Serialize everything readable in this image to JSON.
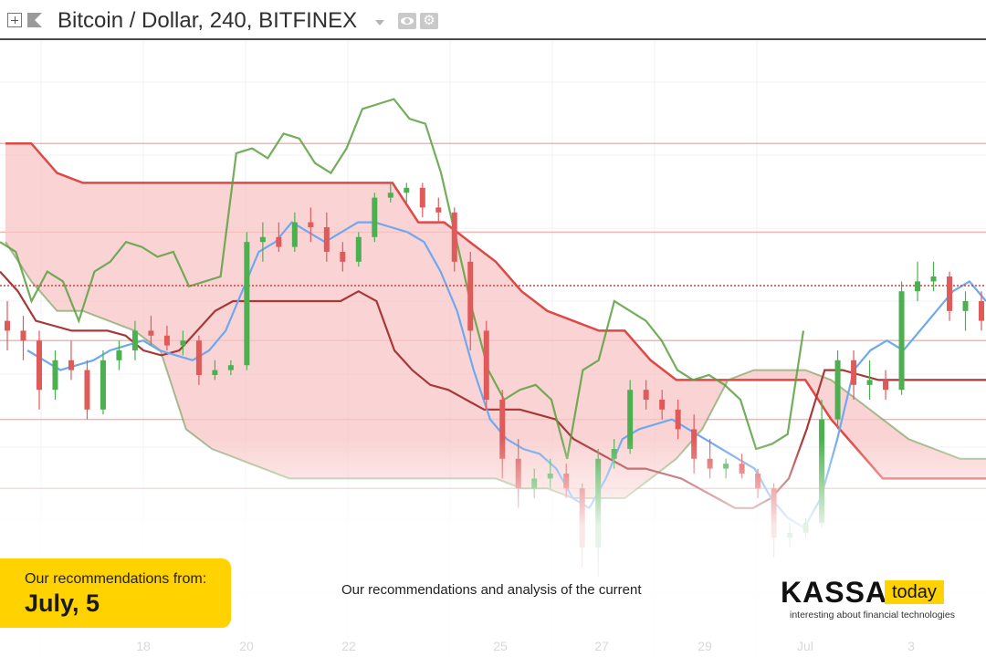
{
  "header": {
    "symbol_title": "Bitcoin / Dollar, 240, BITFINEX",
    "icons": [
      "plus-icon",
      "flag-icon",
      "caret-down-icon",
      "eye-icon",
      "gear-icon"
    ]
  },
  "banner": {
    "recommendation_label": "Our recommendations from:",
    "recommendation_date": "July, 5",
    "analysis_text": "Our recommendations and analysis of the current",
    "logo_main": "KASSA",
    "logo_highlight": "today",
    "logo_tagline": "interesting about financial technologies",
    "accent_color": "#ffd200"
  },
  "chart_data": {
    "type": "candlestick",
    "x_tick_labels": [
      "18",
      "20",
      "22",
      "25",
      "27",
      "29",
      "Jul",
      "3"
    ],
    "indicator": "ichimoku",
    "colors": {
      "up": "#4caf50",
      "down": "#e05a5a",
      "cloud": "#f8c6c6",
      "conversion": "#6fa8f0",
      "base": "#a83838",
      "lagging": "#5aa040"
    },
    "y_range": [
      0,
      100
    ],
    "candles": [
      {
        "o": 46,
        "h": 50,
        "l": 40,
        "c": 44
      },
      {
        "o": 44,
        "h": 47,
        "l": 38,
        "c": 42
      },
      {
        "o": 42,
        "h": 44,
        "l": 28,
        "c": 32
      },
      {
        "o": 32,
        "h": 40,
        "l": 30,
        "c": 38
      },
      {
        "o": 38,
        "h": 42,
        "l": 34,
        "c": 36
      },
      {
        "o": 36,
        "h": 38,
        "l": 26,
        "c": 28
      },
      {
        "o": 28,
        "h": 40,
        "l": 27,
        "c": 38
      },
      {
        "o": 38,
        "h": 42,
        "l": 36,
        "c": 40
      },
      {
        "o": 40,
        "h": 46,
        "l": 38,
        "c": 44
      },
      {
        "o": 44,
        "h": 47,
        "l": 41,
        "c": 43
      },
      {
        "o": 43,
        "h": 45,
        "l": 40,
        "c": 41
      },
      {
        "o": 41,
        "h": 44,
        "l": 39,
        "c": 42
      },
      {
        "o": 42,
        "h": 43,
        "l": 33,
        "c": 35
      },
      {
        "o": 35,
        "h": 38,
        "l": 34,
        "c": 36
      },
      {
        "o": 36,
        "h": 38,
        "l": 35,
        "c": 37
      },
      {
        "o": 37,
        "h": 64,
        "l": 36,
        "c": 62
      },
      {
        "o": 62,
        "h": 66,
        "l": 58,
        "c": 63
      },
      {
        "o": 63,
        "h": 66,
        "l": 60,
        "c": 61
      },
      {
        "o": 61,
        "h": 68,
        "l": 60,
        "c": 66
      },
      {
        "o": 66,
        "h": 69,
        "l": 62,
        "c": 65
      },
      {
        "o": 65,
        "h": 68,
        "l": 58,
        "c": 60
      },
      {
        "o": 60,
        "h": 62,
        "l": 56,
        "c": 58
      },
      {
        "o": 58,
        "h": 64,
        "l": 57,
        "c": 63
      },
      {
        "o": 63,
        "h": 72,
        "l": 62,
        "c": 71
      },
      {
        "o": 71,
        "h": 74,
        "l": 70,
        "c": 72
      },
      {
        "o": 72,
        "h": 74,
        "l": 70,
        "c": 73
      },
      {
        "o": 73,
        "h": 74,
        "l": 67,
        "c": 69
      },
      {
        "o": 69,
        "h": 71,
        "l": 66,
        "c": 68
      },
      {
        "o": 68,
        "h": 69,
        "l": 56,
        "c": 58
      },
      {
        "o": 58,
        "h": 60,
        "l": 40,
        "c": 44
      },
      {
        "o": 44,
        "h": 46,
        "l": 28,
        "c": 30
      },
      {
        "o": 30,
        "h": 32,
        "l": 14,
        "c": 18
      },
      {
        "o": 18,
        "h": 22,
        "l": 8,
        "c": 12
      },
      {
        "o": 12,
        "h": 16,
        "l": 10,
        "c": 14
      },
      {
        "o": 14,
        "h": 18,
        "l": 12,
        "c": 15
      },
      {
        "o": 15,
        "h": 17,
        "l": 10,
        "c": 12
      },
      {
        "o": 12,
        "h": 13,
        "l": -4,
        "c": 0
      },
      {
        "o": 0,
        "h": 20,
        "l": -6,
        "c": 18
      },
      {
        "o": 18,
        "h": 22,
        "l": 16,
        "c": 20
      },
      {
        "o": 20,
        "h": 34,
        "l": 19,
        "c": 32
      },
      {
        "o": 32,
        "h": 34,
        "l": 28,
        "c": 30
      },
      {
        "o": 30,
        "h": 32,
        "l": 26,
        "c": 28
      },
      {
        "o": 28,
        "h": 30,
        "l": 22,
        "c": 24
      },
      {
        "o": 24,
        "h": 27,
        "l": 15,
        "c": 18
      },
      {
        "o": 18,
        "h": 22,
        "l": 14,
        "c": 16
      },
      {
        "o": 16,
        "h": 18,
        "l": 14,
        "c": 17
      },
      {
        "o": 17,
        "h": 19,
        "l": 14,
        "c": 15
      },
      {
        "o": 15,
        "h": 16,
        "l": 10,
        "c": 12
      },
      {
        "o": 12,
        "h": 13,
        "l": -2,
        "c": 2
      },
      {
        "o": 2,
        "h": 5,
        "l": 0,
        "c": 3
      },
      {
        "o": 3,
        "h": 6,
        "l": 2,
        "c": 5
      },
      {
        "o": 5,
        "h": 30,
        "l": 4,
        "c": 26
      },
      {
        "o": 26,
        "h": 40,
        "l": 24,
        "c": 38
      },
      {
        "o": 38,
        "h": 40,
        "l": 30,
        "c": 33
      },
      {
        "o": 33,
        "h": 38,
        "l": 30,
        "c": 34
      },
      {
        "o": 34,
        "h": 36,
        "l": 30,
        "c": 32
      },
      {
        "o": 32,
        "h": 54,
        "l": 31,
        "c": 52
      },
      {
        "o": 52,
        "h": 58,
        "l": 50,
        "c": 54
      },
      {
        "o": 54,
        "h": 58,
        "l": 52,
        "c": 55
      },
      {
        "o": 55,
        "h": 56,
        "l": 46,
        "c": 48
      },
      {
        "o": 48,
        "h": 52,
        "l": 44,
        "c": 50
      },
      {
        "o": 50,
        "h": 52,
        "l": 44,
        "c": 46
      }
    ],
    "conversion_line": [
      40,
      38,
      36,
      37,
      38,
      40,
      41,
      42,
      40,
      39,
      38,
      40,
      44,
      52,
      60,
      62,
      66,
      64,
      62,
      64,
      66,
      66,
      65,
      64,
      62,
      56,
      48,
      36,
      26,
      22,
      20,
      19,
      16,
      10,
      8,
      14,
      22,
      24,
      25,
      26,
      24,
      22,
      20,
      18,
      16,
      10,
      6,
      4,
      10,
      22,
      36,
      40,
      42,
      40,
      44,
      48,
      52,
      54,
      50
    ],
    "base_line": [
      56,
      52,
      46,
      45,
      44,
      44,
      44,
      43,
      40,
      39,
      40,
      44,
      48,
      50,
      50,
      50,
      50,
      50,
      50,
      50,
      52,
      50,
      40,
      36,
      33,
      32,
      30,
      28,
      28,
      28,
      27,
      26,
      22,
      20,
      18,
      16,
      16,
      15,
      14,
      12,
      10,
      8,
      8,
      10,
      14,
      24,
      36,
      36,
      35,
      34,
      34,
      34,
      34,
      34,
      34,
      34
    ],
    "cloud_top": [
      82,
      82,
      76,
      74,
      74,
      74,
      74,
      74,
      74,
      74,
      74,
      74,
      74,
      74,
      74,
      74,
      66,
      66,
      62,
      58,
      52,
      48,
      46,
      44,
      44,
      38,
      34,
      34,
      34,
      34,
      34,
      34,
      26,
      20,
      14,
      14,
      14,
      14,
      14
    ],
    "cloud_bottom": [
      62,
      54,
      48,
      48,
      46,
      44,
      40,
      24,
      20,
      18,
      16,
      14,
      14,
      14,
      14,
      14,
      14,
      14,
      14,
      14,
      12,
      12,
      10,
      10,
      10,
      14,
      18,
      24,
      34,
      36,
      36,
      36,
      34,
      30,
      26,
      22,
      20,
      18,
      18
    ]
  }
}
